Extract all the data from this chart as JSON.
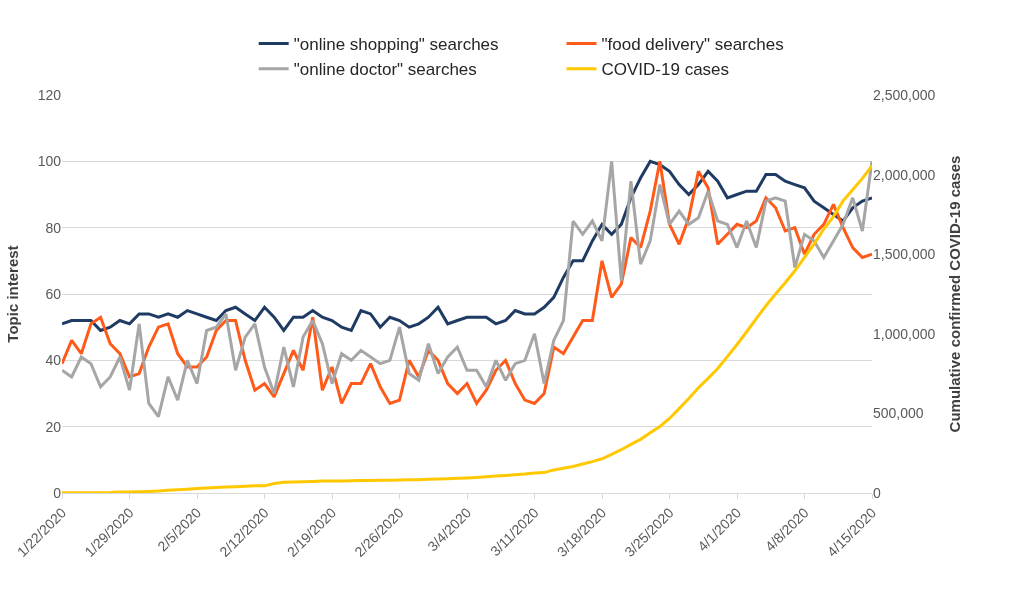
{
  "chart_data": {
    "type": "line",
    "xlabel": null,
    "ylabel": "Topic interest",
    "y2label": "Cumulative confirmed COVID-19 cases",
    "x": [
      "2020-01-22",
      "2020-01-23",
      "2020-01-24",
      "2020-01-25",
      "2020-01-26",
      "2020-01-27",
      "2020-01-28",
      "2020-01-29",
      "2020-01-30",
      "2020-01-31",
      "2020-02-01",
      "2020-02-02",
      "2020-02-03",
      "2020-02-04",
      "2020-02-05",
      "2020-02-06",
      "2020-02-07",
      "2020-02-08",
      "2020-02-09",
      "2020-02-10",
      "2020-02-11",
      "2020-02-12",
      "2020-02-13",
      "2020-02-14",
      "2020-02-15",
      "2020-02-16",
      "2020-02-17",
      "2020-02-18",
      "2020-02-19",
      "2020-02-20",
      "2020-02-21",
      "2020-02-22",
      "2020-02-23",
      "2020-02-24",
      "2020-02-25",
      "2020-02-26",
      "2020-02-27",
      "2020-02-28",
      "2020-02-29",
      "2020-03-01",
      "2020-03-02",
      "2020-03-03",
      "2020-03-04",
      "2020-03-05",
      "2020-03-06",
      "2020-03-07",
      "2020-03-08",
      "2020-03-09",
      "2020-03-10",
      "2020-03-11",
      "2020-03-12",
      "2020-03-13",
      "2020-03-14",
      "2020-03-15",
      "2020-03-16",
      "2020-03-17",
      "2020-03-18",
      "2020-03-19",
      "2020-03-20",
      "2020-03-21",
      "2020-03-22",
      "2020-03-23",
      "2020-03-24",
      "2020-03-25",
      "2020-03-26",
      "2020-03-27",
      "2020-03-28",
      "2020-03-29",
      "2020-03-30",
      "2020-03-31",
      "2020-04-01",
      "2020-04-02",
      "2020-04-03",
      "2020-04-04",
      "2020-04-05",
      "2020-04-06",
      "2020-04-07",
      "2020-04-08",
      "2020-04-09",
      "2020-04-10",
      "2020-04-11",
      "2020-04-12",
      "2020-04-13",
      "2020-04-14",
      "2020-04-15"
    ],
    "series": [
      {
        "name": "\"online shopping\" searches",
        "color": "#1f3b63",
        "values": [
          51,
          52,
          52,
          52,
          49,
          50,
          52,
          51,
          54,
          54,
          53,
          54,
          53,
          55,
          54,
          53,
          52,
          55,
          56,
          54,
          52,
          56,
          53,
          49,
          53,
          53,
          55,
          53,
          52,
          50,
          49,
          55,
          54,
          50,
          53,
          52,
          50,
          51,
          53,
          56,
          51,
          52,
          53,
          53,
          53,
          51,
          52,
          55,
          54,
          54,
          56,
          59,
          65,
          70,
          70,
          76,
          81,
          78,
          81,
          89,
          95,
          100,
          99,
          97,
          93,
          90,
          93,
          97,
          94,
          89,
          90,
          91,
          91,
          96,
          96,
          94,
          93,
          92,
          88,
          86,
          84,
          82,
          86,
          88,
          89
        ]
      },
      {
        "name": "\"food delivery\" searches",
        "color": "#ff5a1a",
        "values": [
          39,
          46,
          42,
          51,
          53,
          45,
          42,
          35,
          36,
          44,
          50,
          51,
          42,
          38,
          38,
          41,
          49,
          52,
          52,
          40,
          31,
          33,
          29,
          36,
          43,
          37,
          53,
          31,
          38,
          27,
          33,
          33,
          39,
          32,
          27,
          28,
          40,
          35,
          43,
          40,
          33,
          30,
          33,
          27,
          31,
          37,
          40,
          33,
          28,
          27,
          30,
          44,
          42,
          47,
          52,
          52,
          70,
          59,
          63,
          77,
          74,
          85,
          100,
          81,
          75,
          83,
          97,
          92,
          75,
          78,
          81,
          80,
          82,
          89,
          86,
          79,
          80,
          72,
          78,
          81,
          87,
          80,
          74,
          71,
          72
        ]
      },
      {
        "name": "\"online doctor\" searches",
        "color": "#a6a6a6",
        "values": [
          37,
          35,
          41,
          39,
          32,
          35,
          41,
          31,
          51,
          27,
          23,
          35,
          28,
          40,
          33,
          49,
          50,
          54,
          37,
          47,
          51,
          38,
          30,
          44,
          32,
          47,
          52,
          45,
          33,
          42,
          40,
          43,
          41,
          39,
          40,
          50,
          36,
          34,
          45,
          36,
          41,
          44,
          37,
          37,
          32,
          40,
          34,
          39,
          40,
          48,
          33,
          46,
          52,
          82,
          78,
          82,
          76,
          100,
          64,
          94,
          69,
          76,
          93,
          81,
          85,
          81,
          83,
          91,
          82,
          81,
          74,
          82,
          74,
          88,
          89,
          88,
          68,
          78,
          76,
          71,
          76,
          81,
          89,
          79,
          100
        ]
      },
      {
        "name": "COVID-19 cases",
        "color": "#ffc800",
        "axis": "y2",
        "values": [
          1000,
          1000,
          1000,
          1000,
          2000,
          3000,
          6000,
          6000,
          8000,
          10000,
          12000,
          17000,
          20000,
          24000,
          28000,
          31000,
          34000,
          37000,
          40000,
          43000,
          45000,
          45000,
          60000,
          67000,
          69000,
          71000,
          73000,
          75000,
          76000,
          76000,
          77000,
          79000,
          79000,
          80000,
          80000,
          81000,
          83000,
          84000,
          86000,
          88000,
          90000,
          93000,
          95000,
          98000,
          102000,
          106000,
          110000,
          114000,
          119000,
          126000,
          128000,
          145000,
          156000,
          167000,
          182000,
          197000,
          215000,
          243000,
          272000,
          305000,
          337000,
          378000,
          418000,
          468000,
          530000,
          593000,
          661000,
          720000,
          782000,
          857000,
          933000,
          1013000,
          1096000,
          1176000,
          1250000,
          1321000,
          1396000,
          1480000,
          1565000,
          1658000,
          1736000,
          1835000,
          1905000,
          1976000,
          2056000
        ]
      }
    ],
    "xlim": [
      "2020-01-22",
      "2020-04-15"
    ],
    "xticks": [
      {
        "value": "2020-01-22",
        "label": "1/22/2020"
      },
      {
        "value": "2020-01-29",
        "label": "1/29/2020"
      },
      {
        "value": "2020-02-05",
        "label": "2/5/2020"
      },
      {
        "value": "2020-02-12",
        "label": "2/12/2020"
      },
      {
        "value": "2020-02-19",
        "label": "2/19/2020"
      },
      {
        "value": "2020-02-26",
        "label": "2/26/2020"
      },
      {
        "value": "2020-03-04",
        "label": "3/4/2020"
      },
      {
        "value": "2020-03-11",
        "label": "3/11/2020"
      },
      {
        "value": "2020-03-18",
        "label": "3/18/2020"
      },
      {
        "value": "2020-03-25",
        "label": "3/25/2020"
      },
      {
        "value": "2020-04-01",
        "label": "4/1/2020"
      },
      {
        "value": "2020-04-08",
        "label": "4/8/2020"
      },
      {
        "value": "2020-04-15",
        "label": "4/15/2020"
      }
    ],
    "ylim": [
      0,
      120
    ],
    "yticks": [
      0,
      20,
      40,
      60,
      80,
      100,
      120
    ],
    "y2lim": [
      0,
      2500000
    ],
    "y2ticks": [
      {
        "value": 0,
        "label": "0"
      },
      {
        "value": 500000,
        "label": "500,000"
      },
      {
        "value": 1000000,
        "label": "1,000,000"
      },
      {
        "value": 1500000,
        "label": "1,500,000"
      },
      {
        "value": 2000000,
        "label": "2,000,000"
      },
      {
        "value": 2500000,
        "label": "2,500,000"
      }
    ],
    "grid": "y",
    "legend": "top",
    "marker": "none",
    "line_style": "solid"
  }
}
